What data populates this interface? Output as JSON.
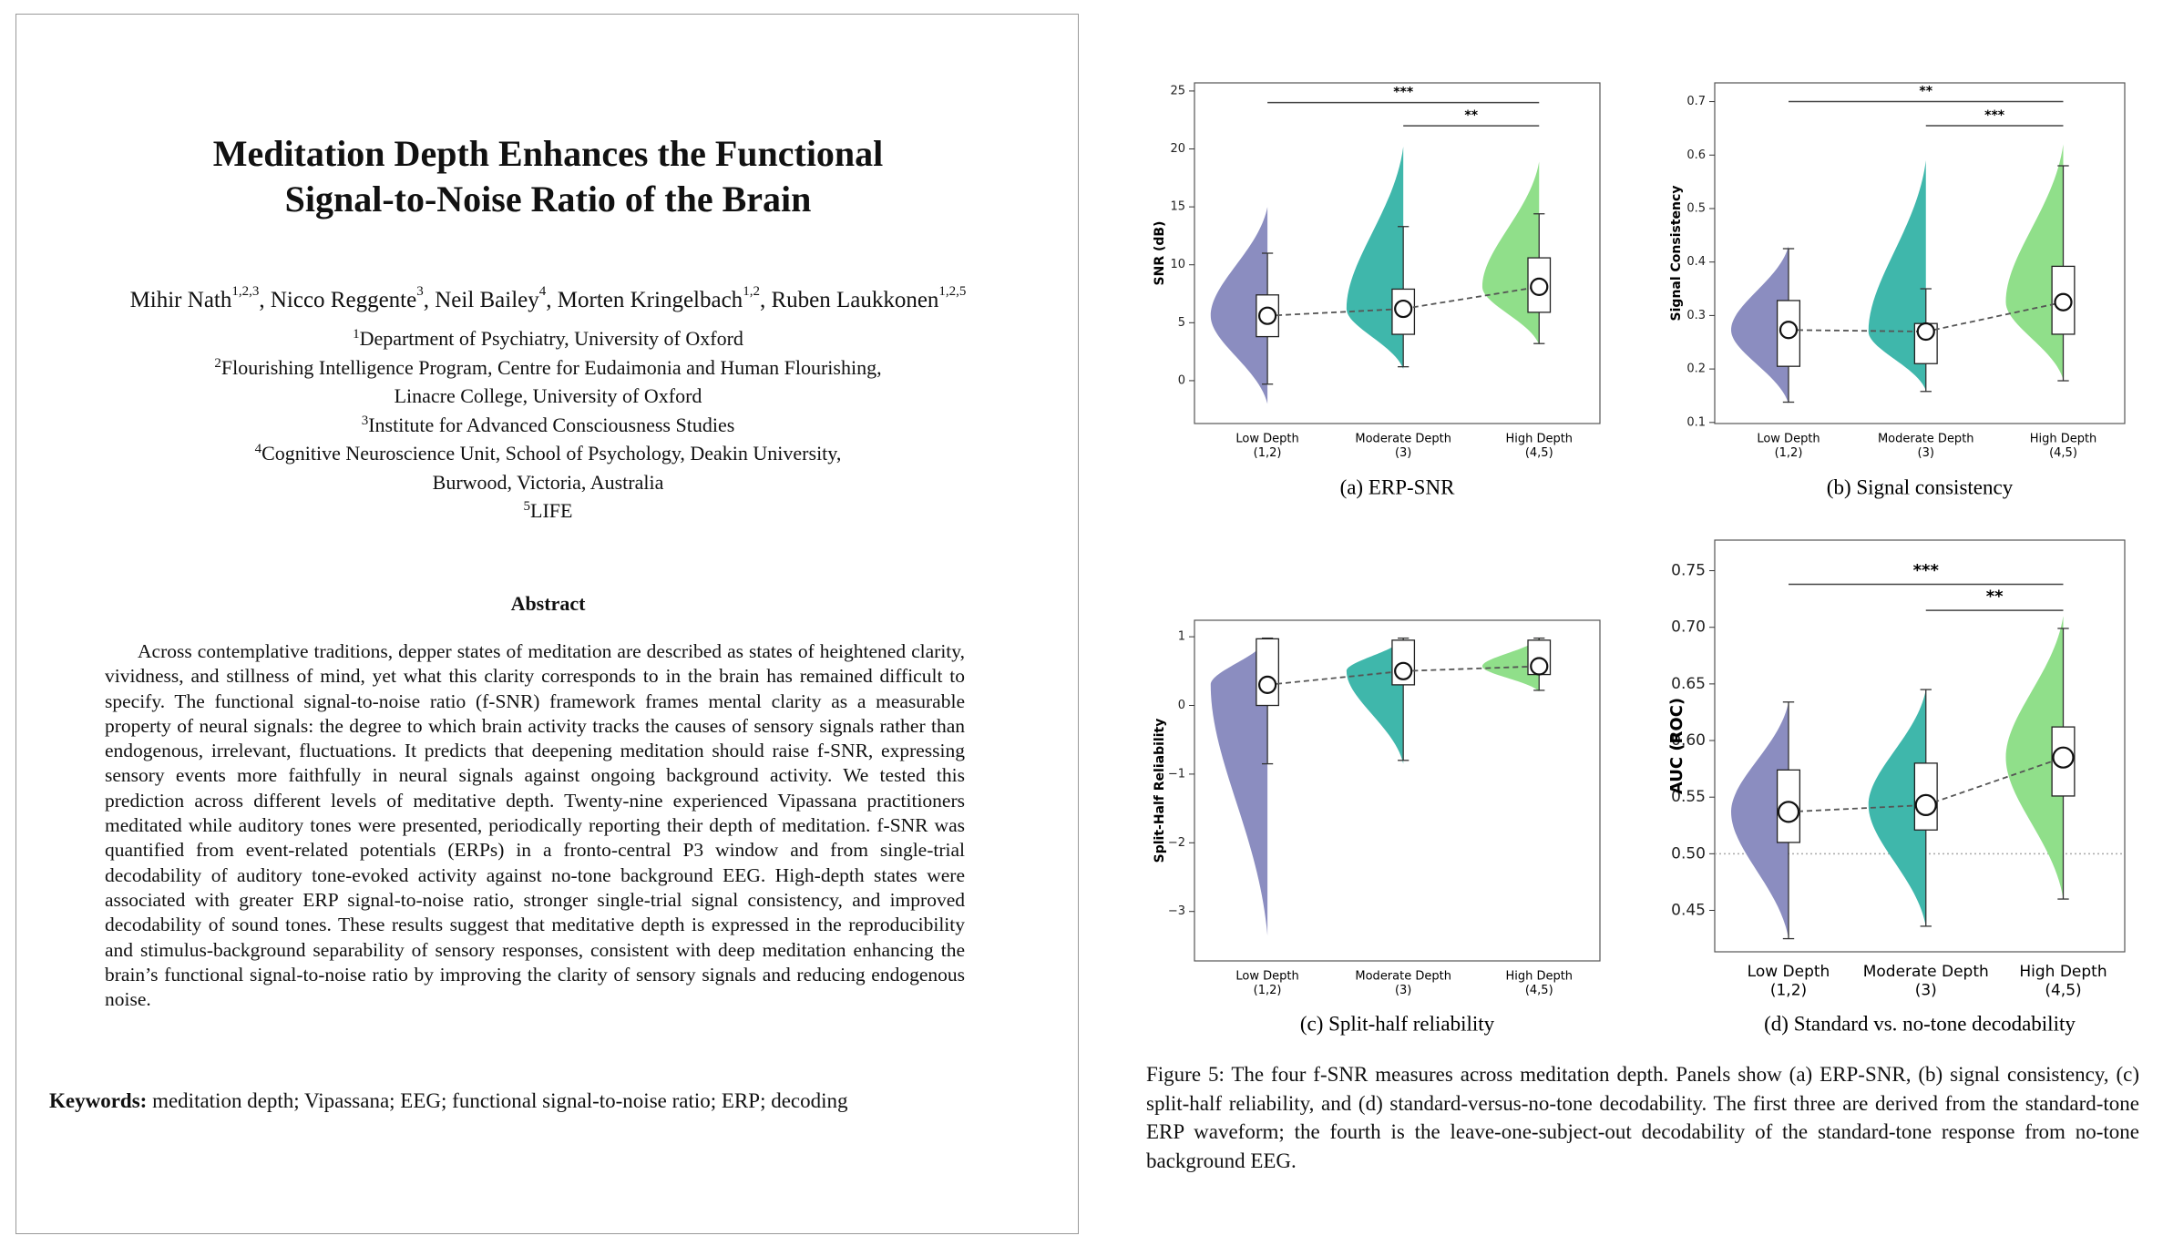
{
  "paper": {
    "title": [
      "Meditation Depth Enhances the Functional",
      "Signal-to-Noise Ratio of the Brain"
    ],
    "authors": [
      {
        "name": "Mihir Nath",
        "affil": "1,2,3"
      },
      {
        "name": "Nicco Reggente",
        "affil": "3"
      },
      {
        "name": "Neil Bailey",
        "affil": "4"
      },
      {
        "name": "Morten Kringelbach",
        "affil": "1,2"
      },
      {
        "name": "Ruben Laukkonen",
        "affil": "1,2,5"
      }
    ],
    "affiliations": [
      {
        "mark": "1",
        "lines": [
          "Department of Psychiatry, University of Oxford"
        ]
      },
      {
        "mark": "2",
        "lines": [
          "Flourishing Intelligence Program, Centre for Eudaimonia and Human Flourishing,",
          "Linacre College, University of Oxford"
        ]
      },
      {
        "mark": "3",
        "lines": [
          "Institute for Advanced Consciousness Studies"
        ]
      },
      {
        "mark": "4",
        "lines": [
          "Cognitive Neuroscience Unit, School of Psychology, Deakin University,",
          "Burwood, Victoria, Australia"
        ]
      },
      {
        "mark": "5",
        "lines": [
          "LIFE"
        ]
      }
    ],
    "abstract_heading": "Abstract",
    "abstract": "Across contemplative traditions, depper states of meditation are described as states of heightened clarity, vividness, and stillness of mind, yet what this clarity corresponds to in the brain has remained difficult to specify. The functional signal-to-noise ratio (f-SNR) framework frames mental clarity as a measurable property of neural signals: the degree to which brain activity tracks the causes of sensory signals rather than endogenous, irrelevant, fluctuations. It predicts that deepening meditation should raise f-SNR, expressing sensory events more faithfully in neural signals against ongoing background activity. We tested this prediction across different levels of meditative depth. Twenty-nine experienced Vipassana practitioners meditated while auditory tones were presented, periodically reporting their depth of meditation. f-SNR was quantified from event-related potentials (ERPs) in a fronto-central P3 window and from single-trial decodability of auditory tone-evoked activity against no-tone background EEG. High-depth states were associated with greater ERP signal-to-noise ratio, stronger single-trial signal consistency, and improved decodability of sound tones. These results suggest that meditative depth is expressed in the reproducibility and stimulus-background separability of sensory responses, consistent with deep meditation enhancing the brain’s functional signal-to-noise ratio by improving the clarity of sensory signals and reducing endogenous noise.",
    "keywords_label": "Keywords:",
    "keywords": "meditation depth; Vipassana; EEG; functional signal-to-noise ratio; ERP; decoding",
    "figure_caption": "Figure 5: The four f-SNR measures across meditation depth. Panels show (a) ERP-SNR, (b) signal consistency, (c) split-half reliability, and (d) standard-versus-no-tone decodability. The first three are derived from the standard-tone ERP waveform; the fourth is the leave-one-subject-out decodability of the standard-tone response from no-tone background EEG."
  },
  "chart_data": [
    {
      "type": "violin",
      "caption": "(a) ERP-SNR",
      "y_label": "SNR (dB)",
      "categories": [
        "Low Depth",
        "Moderate Depth",
        "High Depth"
      ],
      "category_sublabels": [
        "(1,2)",
        "(3)",
        "(4,5)"
      ],
      "colors": [
        "#8b8dc0",
        "#3fb7ab",
        "#90df8a"
      ],
      "ylim": [
        -3.7,
        25.7
      ],
      "yticks": [
        0,
        5,
        10,
        15,
        20,
        25
      ],
      "means": [
        5.6,
        6.2,
        8.1
      ],
      "box_low": [
        3.8,
        4.0,
        5.9
      ],
      "box_high": [
        7.4,
        7.9,
        10.6
      ],
      "whisker_low": [
        -0.3,
        1.2,
        3.2
      ],
      "whisker_high": [
        11,
        13.3,
        14.4
      ],
      "violin_min": [
        -2,
        1,
        3.1
      ],
      "violin_max": [
        15,
        20.2,
        18.9
      ],
      "brackets": [
        {
          "from": 0,
          "to": 2,
          "y": 24,
          "label": "***"
        },
        {
          "from": 1,
          "to": 2,
          "y": 22,
          "label": "**"
        }
      ]
    },
    {
      "type": "violin",
      "caption": "(b) Signal consistency",
      "y_label": "Signal Consistency",
      "categories": [
        "Low Depth",
        "Moderate Depth",
        "High Depth"
      ],
      "category_sublabels": [
        "(1,2)",
        "(3)",
        "(4,5)"
      ],
      "colors": [
        "#8b8dc0",
        "#3fb7ab",
        "#90df8a"
      ],
      "ylim": [
        0.098,
        0.735
      ],
      "yticks": [
        0.1,
        0.2,
        0.3,
        0.4,
        0.5,
        0.6,
        0.7
      ],
      "means": [
        0.273,
        0.27,
        0.325
      ],
      "box_low": [
        0.205,
        0.21,
        0.265
      ],
      "box_high": [
        0.328,
        0.285,
        0.392
      ],
      "whisker_low": [
        0.138,
        0.158,
        0.178
      ],
      "whisker_high": [
        0.425,
        0.35,
        0.58
      ],
      "violin_min": [
        0.135,
        0.16,
        0.18
      ],
      "violin_max": [
        0.43,
        0.59,
        0.62
      ],
      "brackets": [
        {
          "from": 0,
          "to": 2,
          "y": 0.7,
          "label": "**"
        },
        {
          "from": 1,
          "to": 2,
          "y": 0.655,
          "label": "***"
        }
      ]
    },
    {
      "type": "violin",
      "caption": "(c) Split-half reliability",
      "y_label": "Split-Half Reliability",
      "categories": [
        "Low Depth",
        "Moderate Depth",
        "High Depth"
      ],
      "category_sublabels": [
        "(1,2)",
        "(3)",
        "(4,5)"
      ],
      "colors": [
        "#8b8dc0",
        "#3fb7ab",
        "#90df8a"
      ],
      "ylim": [
        -3.72,
        1.24
      ],
      "yticks": [
        {
          "value": -3,
          "label": "−3"
        },
        {
          "value": -2,
          "label": "−2"
        },
        {
          "value": -1,
          "label": "−1"
        },
        0,
        1
      ],
      "means": [
        0.3,
        0.5,
        0.57
      ],
      "box_low": [
        0.0,
        0.3,
        0.45
      ],
      "box_high": [
        0.97,
        0.95,
        0.95
      ],
      "whisker_low": [
        -0.85,
        -0.8,
        0.22
      ],
      "whisker_high": [
        0.98,
        0.98,
        0.98
      ],
      "violin_min": [
        -3.35,
        -0.85,
        0.2
      ],
      "violin_max": [
        0.97,
        0.97,
        0.98
      ],
      "brackets": []
    },
    {
      "type": "violin",
      "caption": "(d) Standard vs. no-tone decodability",
      "y_label": "AUC (ROC)",
      "categories": [
        "Low Depth",
        "Moderate Depth",
        "High Depth"
      ],
      "category_sublabels": [
        "(1,2)",
        "(3)",
        "(4,5)"
      ],
      "colors": [
        "#8b8dc0",
        "#3fb7ab",
        "#90df8a"
      ],
      "ylim": [
        0.4134,
        0.777
      ],
      "yticks": [
        0.45,
        {
          "value": 0.5,
          "label": "0.50"
        },
        0.55,
        {
          "value": 0.6,
          "label": "0.60"
        },
        0.65,
        {
          "value": 0.7,
          "label": "0.70"
        },
        0.75
      ],
      "means": [
        0.537,
        0.543,
        0.585
      ],
      "box_low": [
        0.51,
        0.521,
        0.551
      ],
      "box_high": [
        0.574,
        0.58,
        0.612
      ],
      "whisker_low": [
        0.425,
        0.436,
        0.46
      ],
      "whisker_high": [
        0.634,
        0.645,
        0.699
      ],
      "violin_min": [
        0.425,
        0.436,
        0.46
      ],
      "violin_max": [
        0.634,
        0.645,
        0.71
      ],
      "reference_line": 0.5,
      "brackets": [
        {
          "from": 0,
          "to": 2,
          "y": 0.738,
          "label": "***"
        },
        {
          "from": 1,
          "to": 2,
          "y": 0.715,
          "label": "**"
        }
      ]
    }
  ]
}
